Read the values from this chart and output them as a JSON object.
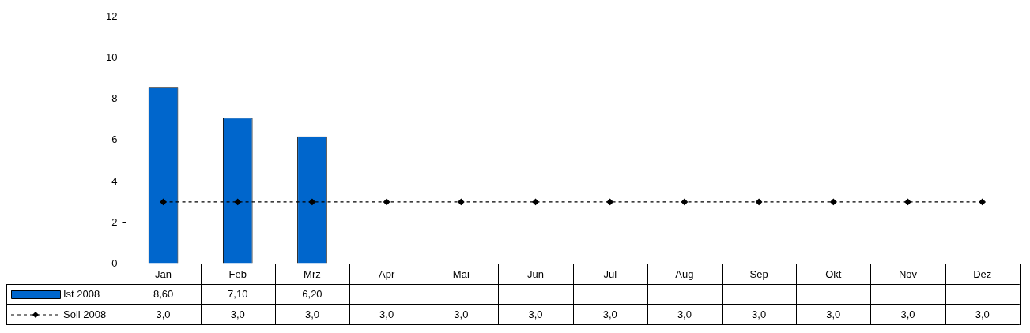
{
  "chart_data": {
    "type": "bar",
    "categories": [
      "Jan",
      "Feb",
      "Mrz",
      "Apr",
      "Mai",
      "Jun",
      "Jul",
      "Aug",
      "Sep",
      "Okt",
      "Nov",
      "Dez"
    ],
    "series": [
      {
        "name": "Ist 2008",
        "type": "bar",
        "color": "#0066cc",
        "values": [
          8.6,
          7.1,
          6.2,
          null,
          null,
          null,
          null,
          null,
          null,
          null,
          null,
          null
        ],
        "value_labels": [
          "8,60",
          "7,10",
          "6,20",
          null,
          null,
          null,
          null,
          null,
          null,
          null,
          null,
          null
        ]
      },
      {
        "name": "Soll 2008",
        "type": "line",
        "color": "#000000",
        "marker": "diamond",
        "line_style": "dashed",
        "values": [
          3,
          3,
          3,
          3,
          3,
          3,
          3,
          3,
          3,
          3,
          3,
          3
        ],
        "value_labels": [
          "3,0",
          "3,0",
          "3,0",
          "3,0",
          "3,0",
          "3,0",
          "3,0",
          "3,0",
          "3,0",
          "3,0",
          "3,0",
          "3,0"
        ]
      }
    ],
    "ylim": [
      0,
      12
    ],
    "yticks": [
      0,
      2,
      4,
      6,
      8,
      10,
      12
    ],
    "legend": "bottom"
  }
}
